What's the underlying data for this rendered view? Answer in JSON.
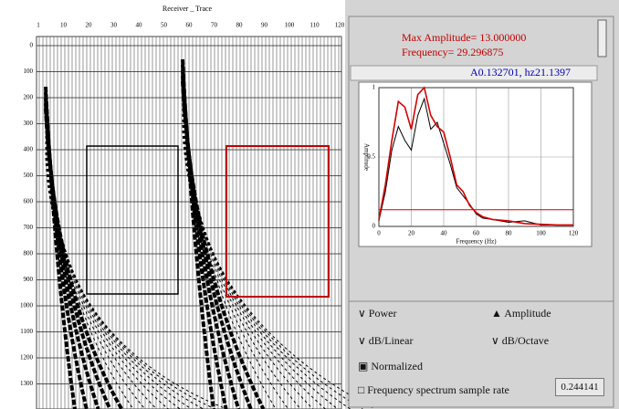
{
  "seismic": {
    "header": "Receiver _ Trace",
    "trace_labels": [
      "1",
      "10",
      "20",
      "30",
      "40",
      "50",
      "60",
      "70",
      "80",
      "90",
      "100",
      "110",
      "120"
    ],
    "depth_labels": [
      "0",
      "100",
      "200",
      "300",
      "400",
      "500",
      "600",
      "700",
      "800",
      "900",
      "1000",
      "1100",
      "1200",
      "1300"
    ]
  },
  "info": {
    "max_amplitude": "Max Amplitude= 13.000000",
    "frequency": "Frequency= 29.296875",
    "cursor": "A0.132701, hz21.1397"
  },
  "spectrum": {
    "x_label": "Frequency (Hz)",
    "y_label": "Amplitude",
    "xlim": [
      0,
      120
    ],
    "ylim": [
      0,
      1
    ],
    "xticks": [
      0,
      20,
      40,
      60,
      80,
      100,
      120
    ],
    "yticks": [
      0,
      0.5,
      1
    ],
    "threshold": 0.12,
    "x": [
      0,
      4,
      8,
      12,
      16,
      20,
      24,
      28,
      32,
      36,
      40,
      44,
      48,
      52,
      56,
      60,
      64,
      70,
      80,
      90,
      100,
      110,
      120
    ],
    "series": [
      {
        "color": "#d40000",
        "values": [
          0.05,
          0.3,
          0.62,
          0.9,
          0.86,
          0.7,
          0.95,
          1.0,
          0.8,
          0.72,
          0.68,
          0.5,
          0.3,
          0.25,
          0.15,
          0.1,
          0.07,
          0.05,
          0.04,
          0.02,
          0.015,
          0.01,
          0.01
        ]
      },
      {
        "color": "#000000",
        "values": [
          0.04,
          0.25,
          0.55,
          0.72,
          0.62,
          0.55,
          0.8,
          0.92,
          0.7,
          0.75,
          0.6,
          0.45,
          0.28,
          0.22,
          0.16,
          0.09,
          0.06,
          0.05,
          0.03,
          0.04,
          0.01,
          0.01,
          0.01
        ]
      }
    ]
  },
  "controls": {
    "power": "Power",
    "amplitude": "Amplitude",
    "db_linear": "dB/Linear",
    "db_octave": "dB/Octave",
    "normalized": "Normalized",
    "sample_rate_label": "Frequency spectrum sample rate",
    "sample_rate": "0.244141"
  }
}
